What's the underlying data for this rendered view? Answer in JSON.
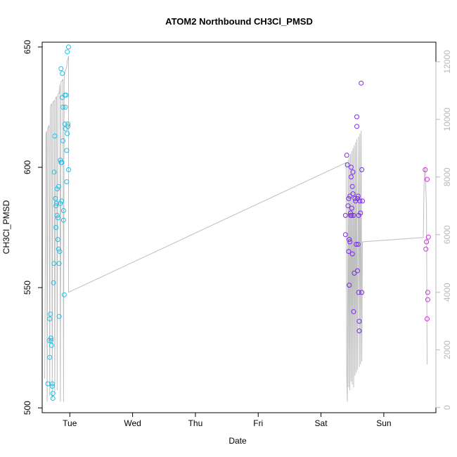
{
  "chart_data": {
    "type": "scatter",
    "title": "ATOM2 Northbound CH3Cl_PMSD",
    "xlabel": "Date",
    "ylabel": "CH3Cl_PMSD",
    "x_unit": "days",
    "xlim": [
      -0.44,
      5.83
    ],
    "ylim": [
      498,
      652
    ],
    "x_ticks": [
      {
        "label": "Tue",
        "value": 0.0
      },
      {
        "label": "Wed",
        "value": 1.0
      },
      {
        "label": "Thu",
        "value": 2.0
      },
      {
        "label": "Fri",
        "value": 3.0
      },
      {
        "label": "Sat",
        "value": 4.0
      },
      {
        "label": "Sun",
        "value": 5.0
      }
    ],
    "y_ticks": [
      500,
      550,
      600,
      650
    ],
    "y2_ticks": [
      0,
      2000,
      4000,
      6000,
      8000,
      10000,
      12000
    ],
    "y2lim": [
      -180,
      12680
    ],
    "colors": {
      "axis": "#000000",
      "right_axis": "#b9b9b9",
      "secondary_line": "#bfbfbf",
      "series_1": "#1fbfe6",
      "series_2": "#7a2be8",
      "series_3": "#d12be0"
    },
    "series": [
      {
        "color": "#1fbfe6",
        "points": [
          [
            -0.35,
            510
          ],
          [
            -0.33,
            528
          ],
          [
            -0.32,
            521
          ],
          [
            -0.32,
            537
          ],
          [
            -0.31,
            539
          ],
          [
            -0.3,
            529
          ],
          [
            -0.3,
            528
          ],
          [
            -0.29,
            526
          ],
          [
            -0.28,
            510
          ],
          [
            -0.28,
            509
          ],
          [
            -0.27,
            506
          ],
          [
            -0.27,
            504
          ],
          [
            -0.26,
            552
          ],
          [
            -0.25,
            560
          ],
          [
            -0.25,
            598
          ],
          [
            -0.24,
            613
          ],
          [
            -0.23,
            587
          ],
          [
            -0.22,
            584
          ],
          [
            -0.22,
            575
          ],
          [
            -0.21,
            585
          ],
          [
            -0.2,
            591
          ],
          [
            -0.2,
            580
          ],
          [
            -0.19,
            579
          ],
          [
            -0.19,
            570
          ],
          [
            -0.18,
            592
          ],
          [
            -0.18,
            566
          ],
          [
            -0.17,
            560
          ],
          [
            -0.17,
            538
          ],
          [
            -0.16,
            565
          ],
          [
            -0.15,
            585
          ],
          [
            -0.15,
            603
          ],
          [
            -0.14,
            641
          ],
          [
            -0.14,
            602
          ],
          [
            -0.13,
            602
          ],
          [
            -0.13,
            586
          ],
          [
            -0.12,
            639
          ],
          [
            -0.12,
            629
          ],
          [
            -0.11,
            625
          ],
          [
            -0.11,
            611
          ],
          [
            -0.1,
            578
          ],
          [
            -0.1,
            582
          ],
          [
            -0.09,
            547
          ],
          [
            -0.08,
            630
          ],
          [
            -0.08,
            618
          ],
          [
            -0.07,
            625
          ],
          [
            -0.07,
            616
          ],
          [
            -0.06,
            630
          ],
          [
            -0.05,
            594
          ],
          [
            -0.05,
            607
          ],
          [
            -0.04,
            648
          ],
          [
            -0.04,
            614
          ],
          [
            -0.03,
            617
          ],
          [
            -0.03,
            618
          ],
          [
            -0.02,
            650
          ],
          [
            -0.02,
            599
          ]
        ]
      },
      {
        "color": "#7a2be8",
        "points": [
          [
            4.39,
            572
          ],
          [
            4.39,
            580
          ],
          [
            4.41,
            605
          ],
          [
            4.42,
            601
          ],
          [
            4.43,
            584
          ],
          [
            4.44,
            587
          ],
          [
            4.44,
            565
          ],
          [
            4.45,
            551
          ],
          [
            4.45,
            570
          ],
          [
            4.46,
            569
          ],
          [
            4.46,
            588
          ],
          [
            4.47,
            581
          ],
          [
            4.47,
            580
          ],
          [
            4.48,
            596
          ],
          [
            4.48,
            600
          ],
          [
            4.49,
            580
          ],
          [
            4.49,
            583
          ],
          [
            4.5,
            592
          ],
          [
            4.5,
            564
          ],
          [
            4.51,
            589
          ],
          [
            4.51,
            598
          ],
          [
            4.52,
            540
          ],
          [
            4.52,
            580
          ],
          [
            4.53,
            556
          ],
          [
            4.54,
            587
          ],
          [
            4.55,
            586
          ],
          [
            4.56,
            568
          ],
          [
            4.57,
            617
          ],
          [
            4.57,
            621
          ],
          [
            4.58,
            587
          ],
          [
            4.58,
            557
          ],
          [
            4.59,
            588
          ],
          [
            4.59,
            568
          ],
          [
            4.6,
            548
          ],
          [
            4.6,
            580
          ],
          [
            4.61,
            536
          ],
          [
            4.61,
            532
          ],
          [
            4.62,
            586
          ],
          [
            4.63,
            581
          ],
          [
            4.64,
            635
          ],
          [
            4.65,
            548
          ],
          [
            4.65,
            599
          ],
          [
            4.66,
            586
          ]
        ]
      },
      {
        "color": "#d12be0",
        "points": [
          [
            5.66,
            599
          ],
          [
            5.67,
            566
          ],
          [
            5.68,
            569
          ],
          [
            5.69,
            595
          ],
          [
            5.69,
            537
          ],
          [
            5.7,
            545
          ],
          [
            5.7,
            548
          ],
          [
            5.71,
            571
          ]
        ]
      }
    ],
    "secondary_line": [
      [
        -0.4,
        1000
      ],
      [
        -0.38,
        9500
      ],
      [
        -0.37,
        9600
      ],
      [
        -0.36,
        200
      ],
      [
        -0.35,
        9700
      ],
      [
        -0.33,
        9800
      ],
      [
        -0.32,
        400
      ],
      [
        -0.31,
        10400
      ],
      [
        -0.3,
        10500
      ],
      [
        -0.29,
        10550
      ],
      [
        -0.28,
        300
      ],
      [
        -0.27,
        10600
      ],
      [
        -0.25,
        10650
      ],
      [
        -0.24,
        500
      ],
      [
        -0.23,
        10700
      ],
      [
        -0.22,
        10750
      ],
      [
        -0.21,
        10800
      ],
      [
        -0.2,
        600
      ],
      [
        -0.19,
        10850
      ],
      [
        -0.18,
        10900
      ],
      [
        -0.17,
        10900
      ],
      [
        -0.16,
        11200
      ],
      [
        -0.15,
        200
      ],
      [
        -0.14,
        11300
      ],
      [
        -0.12,
        11350
      ],
      [
        -0.11,
        11400
      ],
      [
        -0.1,
        200
      ],
      [
        -0.09,
        11500
      ],
      [
        -0.08,
        11600
      ],
      [
        -0.07,
        11700
      ],
      [
        -0.06,
        11750
      ],
      [
        -0.05,
        11800
      ],
      [
        -0.04,
        12050
      ],
      [
        -0.03,
        12100
      ],
      [
        -0.02,
        12200
      ],
      [
        -0.02,
        4000
      ],
      [
        4.4,
        8500
      ],
      [
        4.41,
        1000
      ],
      [
        4.42,
        200
      ],
      [
        4.43,
        8600
      ],
      [
        4.44,
        700
      ],
      [
        4.45,
        8700
      ],
      [
        4.46,
        600
      ],
      [
        4.47,
        8800
      ],
      [
        4.48,
        900
      ],
      [
        4.49,
        8900
      ],
      [
        4.5,
        800
      ],
      [
        4.51,
        9000
      ],
      [
        4.52,
        700
      ],
      [
        4.53,
        9100
      ],
      [
        4.54,
        1100
      ],
      [
        4.55,
        9200
      ],
      [
        4.56,
        1200
      ],
      [
        4.57,
        9300
      ],
      [
        4.58,
        1300
      ],
      [
        4.6,
        9400
      ],
      [
        4.61,
        1400
      ],
      [
        4.62,
        9500
      ],
      [
        4.63,
        1500
      ],
      [
        4.64,
        9600
      ],
      [
        4.65,
        1600
      ],
      [
        4.66,
        5750
      ],
      [
        5.63,
        5900
      ],
      [
        5.64,
        7500
      ],
      [
        5.65,
        8300
      ],
      [
        5.66,
        8350
      ],
      [
        5.67,
        7600
      ],
      [
        5.68,
        7000
      ],
      [
        5.69,
        1500
      ]
    ]
  }
}
